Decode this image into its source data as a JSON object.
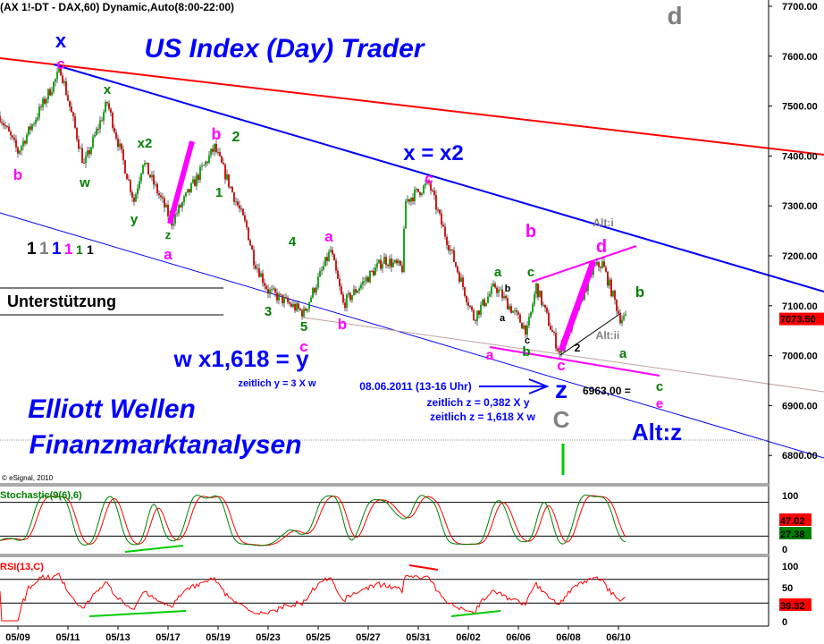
{
  "header": {
    "title": "(AX 1!-DT - DAX,60) Dynamic,Auto(8:00-22:00)",
    "copyright": "© eSignal, 2010"
  },
  "chart_data": {
    "type": "candlestick",
    "title": "(AX 1!-DT - DAX,60) Dynamic,Auto(8:00-22:00)",
    "ylim": [
      6780,
      7720
    ],
    "price_ticks": [
      7700,
      7600,
      7500,
      7400,
      7300,
      7200,
      7100,
      7000,
      6900,
      6800
    ],
    "trading_days": [
      "05/06",
      "05/09",
      "05/10",
      "05/11",
      "05/12",
      "05/13",
      "05/16",
      "05/17",
      "05/18",
      "05/19",
      "05/20",
      "05/23",
      "05/24",
      "05/25",
      "05/26",
      "05/27",
      "05/30",
      "05/31",
      "06/01",
      "06/02",
      "06/03",
      "06/06",
      "06/07",
      "06/08",
      "06/09",
      "06/10"
    ],
    "date_ticks": [
      "05/09",
      "05/11",
      "05/13",
      "05/17",
      "05/19",
      "05/23",
      "05/25",
      "05/27",
      "05/31",
      "06/02",
      "06/06",
      "06/08",
      "06/10"
    ],
    "session_hours": [
      8,
      22
    ],
    "price_path": [
      [
        "05/06",
        12,
        7480
      ],
      [
        "05/09",
        8,
        7408
      ],
      [
        "05/10",
        18,
        7573
      ],
      [
        "05/11",
        17,
        7381
      ],
      [
        "05/12",
        16,
        7507
      ],
      [
        "05/13",
        17,
        7310
      ],
      [
        "05/16",
        8,
        7390
      ],
      [
        "05/17",
        10,
        7268
      ],
      [
        "05/18",
        20,
        7417
      ],
      [
        "05/20",
        10,
        7256
      ],
      [
        "05/20",
        14,
        7193
      ],
      [
        "05/23",
        8,
        7130
      ],
      [
        "05/24",
        14,
        7085
      ],
      [
        "05/25",
        15,
        7211
      ],
      [
        "05/26",
        8,
        7103
      ],
      [
        "05/27",
        17,
        7193
      ],
      [
        "05/30",
        13,
        7175
      ],
      [
        "05/30",
        15,
        7310
      ],
      [
        "05/31",
        14,
        7345
      ],
      [
        "05/31",
        21,
        7264
      ],
      [
        "06/02",
        11,
        7076
      ],
      [
        "06/03",
        9,
        7139
      ],
      [
        "06/06",
        13,
        7049
      ],
      [
        "06/06",
        18,
        7139
      ],
      [
        "06/07",
        17,
        7005
      ],
      [
        "06/09",
        8,
        7175
      ],
      [
        "06/09",
        13,
        7184
      ],
      [
        "06/10",
        9,
        7076
      ],
      [
        "06/10",
        12,
        7073.5
      ]
    ],
    "last_price": "7073.50",
    "colors": {
      "up": "#00a000",
      "down": "#d00000",
      "last_price_bg": "#ff0000"
    },
    "indicators": [
      {
        "name": "Stochastic(9(6),6)",
        "ylim": [
          0,
          100
        ],
        "ticks": [
          "100",
          "0"
        ],
        "levels": [
          80,
          20
        ],
        "last_values": [
          "47.02",
          "27.38"
        ],
        "colors": [
          "#ff0000",
          "#008000"
        ]
      },
      {
        "name": "RSI(13,C)",
        "ylim": [
          0,
          100
        ],
        "ticks": [
          "100",
          "50",
          "0"
        ],
        "levels": [
          70,
          30
        ],
        "last_values": [
          "39.32"
        ],
        "colors": [
          "#ff0000"
        ]
      }
    ]
  },
  "annotations": [
    {
      "text": "d",
      "color": "#808080"
    },
    {
      "text": "x",
      "color": "#0000ff"
    },
    {
      "text": "c",
      "color": "#ff00ff"
    },
    {
      "text": "b",
      "color": "#ff00ff"
    },
    {
      "text": "w",
      "color": "#008000"
    },
    {
      "text": "x",
      "color": "#008000"
    },
    {
      "text": "y",
      "color": "#008000"
    },
    {
      "text": "x2",
      "color": "#008000"
    },
    {
      "text": "b",
      "color": "#ff00ff"
    },
    {
      "text": "2",
      "color": "#008000"
    },
    {
      "text": "1",
      "color": "#008000"
    },
    {
      "text": "z",
      "color": "#008000"
    },
    {
      "text": "a",
      "color": "#ff00ff"
    },
    {
      "text": "4",
      "color": "#008000"
    },
    {
      "text": "a",
      "color": "#ff00ff"
    },
    {
      "text": "3",
      "color": "#008000"
    },
    {
      "text": "5",
      "color": "#008000"
    },
    {
      "text": "c",
      "color": "#ff00ff"
    },
    {
      "text": "b",
      "color": "#ff00ff"
    },
    {
      "text": "x = x2",
      "color": "#0000ff"
    },
    {
      "text": "c",
      "color": "#ff00ff"
    },
    {
      "text": "Alt:i",
      "color": "#808080"
    },
    {
      "text": "b",
      "color": "#ff00ff"
    },
    {
      "text": "d",
      "color": "#ff00ff"
    },
    {
      "text": "a",
      "color": "#008000"
    },
    {
      "text": "c",
      "color": "#008000"
    },
    {
      "text": "b",
      "color": "#000000"
    },
    {
      "text": "a",
      "color": "#000000"
    },
    {
      "text": "c",
      "color": "#000000"
    },
    {
      "text": "b",
      "color": "#008000"
    },
    {
      "text": "2",
      "color": "#000000"
    },
    {
      "text": "Alt:ii",
      "color": "#808080"
    },
    {
      "text": "b",
      "color": "#008000"
    },
    {
      "text": "a",
      "color": "#008000"
    },
    {
      "text": "a",
      "color": "#ff00ff"
    },
    {
      "text": "c",
      "color": "#ff00ff"
    },
    {
      "text": "z",
      "color": "#0000ff"
    },
    {
      "text": "C",
      "color": "#808080"
    },
    {
      "text": "6963,00 =",
      "color": "#000000"
    },
    {
      "text": "c",
      "color": "#008000"
    },
    {
      "text": "e",
      "color": "#ff00ff"
    },
    {
      "text": "Alt:z",
      "color": "#0000ff"
    },
    {
      "text": "w x1,618 = y",
      "color": "#0000ff"
    },
    {
      "text": "zeitlich y = 3 X w",
      "color": "#0000ff"
    },
    {
      "text": "08.06.2011 (13-16 Uhr)",
      "color": "#0000ff"
    },
    {
      "text": "zeitlich z = 0,382 X y",
      "color": "#0000ff"
    },
    {
      "text": "zeitlich z = 1,618 X w",
      "color": "#0000ff"
    },
    {
      "text": "US Index (Day) Trader",
      "color": "#0000ff"
    },
    {
      "text": "Elliott Wellen",
      "color": "#0000ff"
    },
    {
      "text": "Finanzmarktanalysen",
      "color": "#0000ff"
    },
    {
      "text": "Unterstützung",
      "color": "#000000"
    }
  ],
  "wave_counts": [
    {
      "text": "1",
      "color": "#000000"
    },
    {
      "text": "1",
      "color": "#808080"
    },
    {
      "text": "1",
      "color": "#0000ff"
    },
    {
      "text": "1",
      "color": "#ff00ff"
    },
    {
      "text": "1",
      "color": "#008000"
    },
    {
      "text": "1",
      "color": "#000000"
    }
  ]
}
